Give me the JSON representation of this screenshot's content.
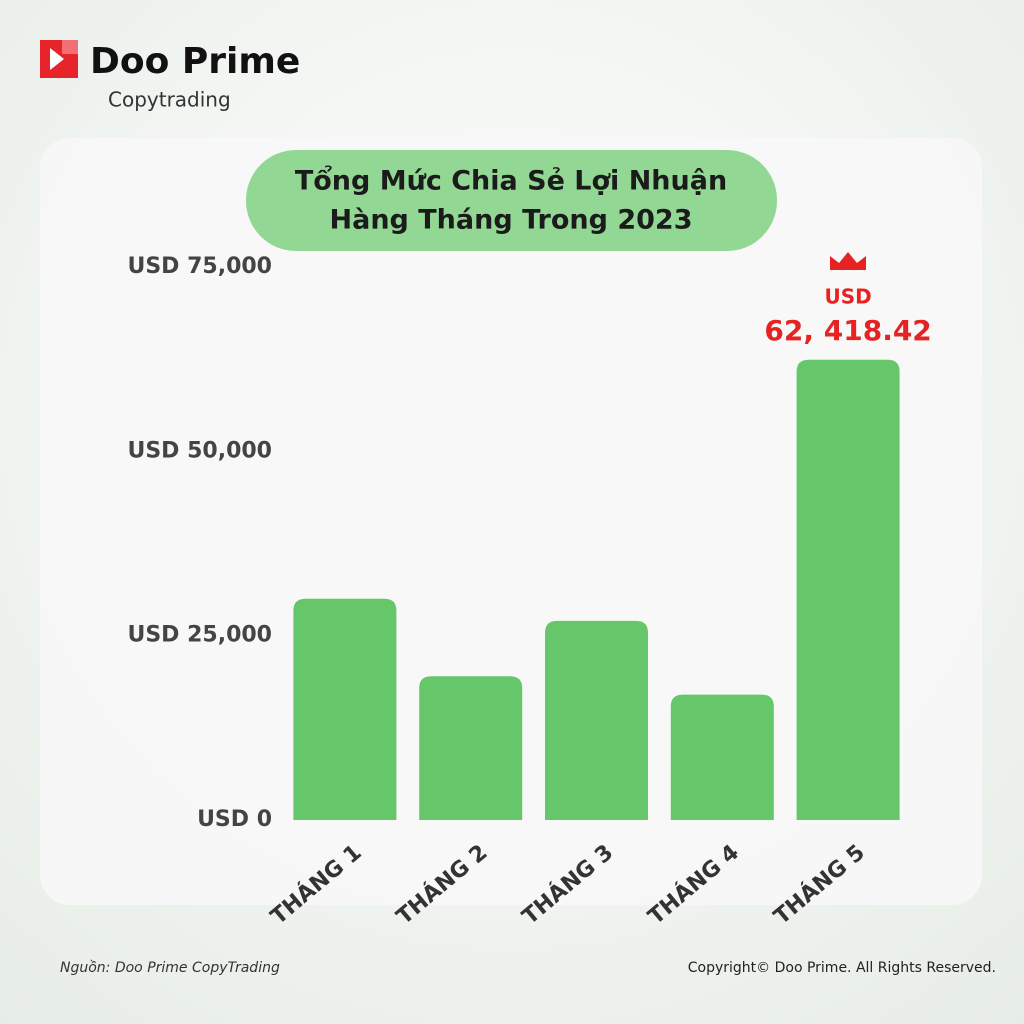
{
  "header": {
    "brand": "Doo Prime",
    "product": "Copytrading"
  },
  "chart_data": {
    "type": "bar",
    "title": [
      "Tổng Mức Chia Sẻ Lợi Nhuận",
      "Hàng Tháng Trong 2023"
    ],
    "categories": [
      "THÁNG 1",
      "THÁNG 2",
      "THÁNG 3",
      "THÁNG 4",
      "THÁNG 5"
    ],
    "values": [
      30000,
      19500,
      27000,
      17000,
      62418.42
    ],
    "value_labels": [
      null,
      null,
      null,
      null,
      "62, 418.42"
    ],
    "value_label_unit": "USD",
    "color": "#66c66a",
    "ylim": [
      0,
      75000
    ],
    "yticks": [
      {
        "value": 0,
        "label": "USD 0"
      },
      {
        "value": 25000,
        "label": "USD 25,000"
      },
      {
        "value": 50000,
        "label": "USD 50,000"
      },
      {
        "value": 75000,
        "label": "USD 75,000"
      }
    ],
    "grid": false
  },
  "footer": {
    "source": "Nguồn: Doo Prime CopyTrading",
    "copyright": "Copyright© Doo Prime. All Rights Reserved."
  }
}
